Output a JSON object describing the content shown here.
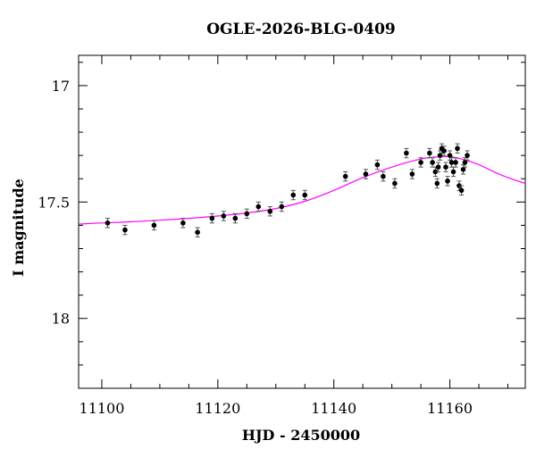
{
  "chart_data": {
    "type": "scatter",
    "title": "OGLE-2026-BLG-0409",
    "xlabel": "HJD - 2450000",
    "ylabel": "I magnitude",
    "xlim": [
      11096,
      11173
    ],
    "ylim": [
      18.3,
      16.87
    ],
    "y_inverted": true,
    "x_ticks": [
      11100,
      11120,
      11140,
      11160
    ],
    "y_ticks": [
      17,
      17.5,
      18
    ],
    "grid": false,
    "marker_color": "#000000",
    "model_color": "#ff00ff",
    "series": [
      {
        "kind": "points",
        "x": [
          11101,
          11104,
          11109,
          11114,
          11116.5,
          11119,
          11121,
          11123,
          11125,
          11127,
          11129,
          11131,
          11133,
          11135,
          11142,
          11145.5,
          11147.5,
          11148.5,
          11150.5,
          11152.5,
          11153.5,
          11155,
          11156.5,
          11157,
          11157.5,
          11157.8,
          11158,
          11158.3,
          11158.6,
          11159,
          11159.3,
          11159.6,
          11160,
          11160.3,
          11160.6,
          11161,
          11161.3,
          11161.6,
          11162,
          11162.3,
          11162.6,
          11163
        ],
        "y": [
          17.59,
          17.62,
          17.6,
          17.59,
          17.63,
          17.57,
          17.56,
          17.57,
          17.55,
          17.52,
          17.54,
          17.52,
          17.47,
          17.47,
          17.39,
          17.38,
          17.34,
          17.39,
          17.42,
          17.29,
          17.38,
          17.33,
          17.29,
          17.33,
          17.37,
          17.42,
          17.35,
          17.3,
          17.27,
          17.28,
          17.35,
          17.41,
          17.3,
          17.33,
          17.37,
          17.33,
          17.27,
          17.43,
          17.45,
          17.36,
          17.33,
          17.3
        ],
        "err": [
          0.02,
          0.02,
          0.02,
          0.02,
          0.02,
          0.02,
          0.02,
          0.02,
          0.02,
          0.02,
          0.02,
          0.02,
          0.02,
          0.02,
          0.02,
          0.02,
          0.02,
          0.02,
          0.02,
          0.02,
          0.02,
          0.02,
          0.02,
          0.02,
          0.02,
          0.02,
          0.02,
          0.02,
          0.02,
          0.02,
          0.02,
          0.02,
          0.02,
          0.02,
          0.02,
          0.02,
          0.02,
          0.02,
          0.02,
          0.02,
          0.02,
          0.02
        ]
      },
      {
        "kind": "model",
        "x": [
          11096,
          11100,
          11105,
          11110,
          11115,
          11120,
          11125,
          11130,
          11135,
          11140,
          11145,
          11150,
          11155,
          11158,
          11160,
          11162,
          11165,
          11168,
          11170,
          11173
        ],
        "y": [
          17.595,
          17.59,
          17.585,
          17.578,
          17.57,
          17.56,
          17.547,
          17.528,
          17.497,
          17.45,
          17.395,
          17.35,
          17.315,
          17.306,
          17.305,
          17.315,
          17.34,
          17.375,
          17.395,
          17.42
        ]
      }
    ]
  }
}
